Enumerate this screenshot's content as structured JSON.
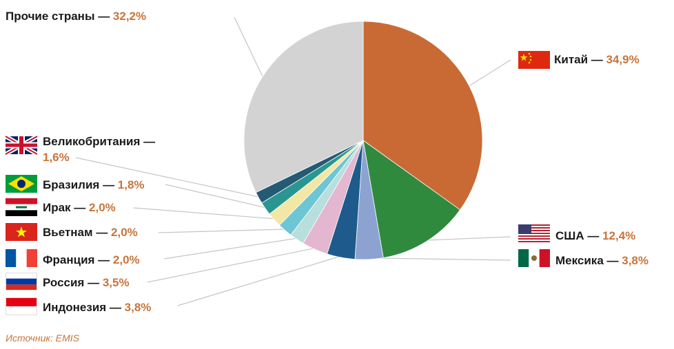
{
  "chart_data": {
    "type": "pie",
    "title": "",
    "start": "top, clockwise",
    "slices": [
      {
        "name": "Китай",
        "dash": "—",
        "value": 34.9,
        "label": "34,9%",
        "color": "#c96a35",
        "flag": "china-flag-icon"
      },
      {
        "name": "США",
        "dash": "—",
        "value": 12.4,
        "label": "12,4%",
        "color": "#2f8a3e",
        "flag": "usa-flag-icon"
      },
      {
        "name": "Мексика",
        "dash": "—",
        "value": 3.8,
        "label": "3,8%",
        "color": "#8ca3d1",
        "flag": "mexico-flag-icon"
      },
      {
        "name": "Индонезия",
        "dash": "—",
        "value": 3.8,
        "label": "3,8%",
        "color": "#1e5b8c",
        "flag": "indonesia-flag-icon"
      },
      {
        "name": "Россия",
        "dash": "—",
        "value": 3.5,
        "label": "3,5%",
        "color": "#e2b7cf",
        "flag": "russia-flag-icon"
      },
      {
        "name": "Франция",
        "dash": "—",
        "value": 2.0,
        "label": "2,0%",
        "color": "#b8dede",
        "flag": "france-flag-icon"
      },
      {
        "name": "Вьетнам",
        "dash": "—",
        "value": 2.0,
        "label": "2,0%",
        "color": "#6ec6d4",
        "flag": "vietnam-flag-icon"
      },
      {
        "name": "Ирак",
        "dash": "—",
        "value": 2.0,
        "label": "2,0%",
        "color": "#f3e7a6",
        "flag": "iraq-flag-icon"
      },
      {
        "name": "Бразилия",
        "dash": "—",
        "value": 1.8,
        "label": "1,8%",
        "color": "#2a9691",
        "flag": "brazil-flag-icon"
      },
      {
        "name": "Великобритания",
        "dash": "—",
        "value": 1.6,
        "label": "1,6%",
        "color": "#255a75",
        "flag": "uk-flag-icon"
      },
      {
        "name": "Прочие страны",
        "dash": "—",
        "value": 32.2,
        "label": "32,2%",
        "color": "#d3d3d3",
        "flag": ""
      }
    ],
    "source": "Источник: EMIS"
  }
}
